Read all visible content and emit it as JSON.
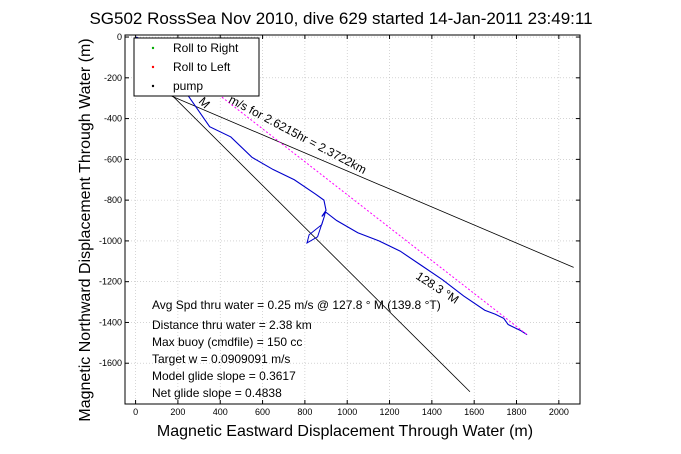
{
  "chart_data": {
    "type": "line",
    "title": "SG502 RossSea Nov 2010, dive 629 started 14-Jan-2011 23:49:11",
    "xlabel": "Magnetic Eastward Displacement Through Water (m)",
    "ylabel": "Magnetic Northward Displacement Through Water (m)",
    "xlim": [
      -50,
      2100
    ],
    "ylim": [
      -1800,
      10
    ],
    "xticks": [
      0,
      200,
      400,
      600,
      800,
      1000,
      1200,
      1400,
      1600,
      1800,
      2000
    ],
    "yticks": [
      0,
      -200,
      -400,
      -600,
      -800,
      -1000,
      -1200,
      -1400,
      -1600
    ],
    "grid": true,
    "legend": {
      "position": "top-left",
      "entries": [
        {
          "label": "Roll to Right",
          "color": "#00aa00"
        },
        {
          "label": "Roll to Left",
          "color": "#ff0000"
        },
        {
          "label": "pump",
          "color": "#000000"
        }
      ]
    },
    "series": [
      {
        "name": "track",
        "color": "#0000cc",
        "x": [
          0,
          60,
          80,
          150,
          250,
          350,
          450,
          550,
          650,
          750,
          850,
          890,
          900,
          880,
          900,
          950,
          1050,
          1150,
          1250,
          1350,
          1450,
          1550,
          1650,
          1700,
          1740,
          1760,
          1800,
          1820,
          1850
        ],
        "y": [
          0,
          -20,
          -30,
          -150,
          -290,
          -440,
          -490,
          -590,
          -650,
          -700,
          -770,
          -800,
          -850,
          -880,
          -860,
          -900,
          -960,
          -1000,
          -1050,
          -1120,
          -1190,
          -1270,
          -1340,
          -1360,
          -1380,
          -1410,
          -1430,
          -1440,
          -1460
        ]
      },
      {
        "name": "course-line",
        "color": "#ff00ff",
        "style": "dotted",
        "x": [
          80,
          1850
        ],
        "y": [
          -30,
          -1460
        ]
      }
    ],
    "guide_lines": [
      {
        "x": [
          80,
          2070
        ],
        "y": [
          -250,
          -1130
        ],
        "color": "#000000"
      },
      {
        "x": [
          60,
          1580
        ],
        "y": [
          -170,
          -1740
        ],
        "color": "#000000"
      }
    ],
    "loop": {
      "x": [
        895,
        880,
        820,
        810,
        860,
        895
      ],
      "y": [
        -870,
        -920,
        -970,
        -1010,
        -980,
        -870
      ]
    },
    "annotations": [
      {
        "text": "Avg Spd thru water =  0.25 m/s @ 127.8 ° M (139.8 °T)"
      },
      {
        "text": "Distance thru water =  2.38 km"
      },
      {
        "text": "Max buoy (cmdfile) = 150 cc"
      },
      {
        "text": "Target w = 0.0909091 m/s"
      },
      {
        "text": "Model glide slope = 0.3617"
      },
      {
        "text": "Net glide slope = 0.4838"
      }
    ],
    "line_labels": [
      {
        "text": "m/s for 2.6215hr = 2.3722km"
      },
      {
        "text": "M"
      },
      {
        "text": "128.3 °M"
      }
    ]
  }
}
